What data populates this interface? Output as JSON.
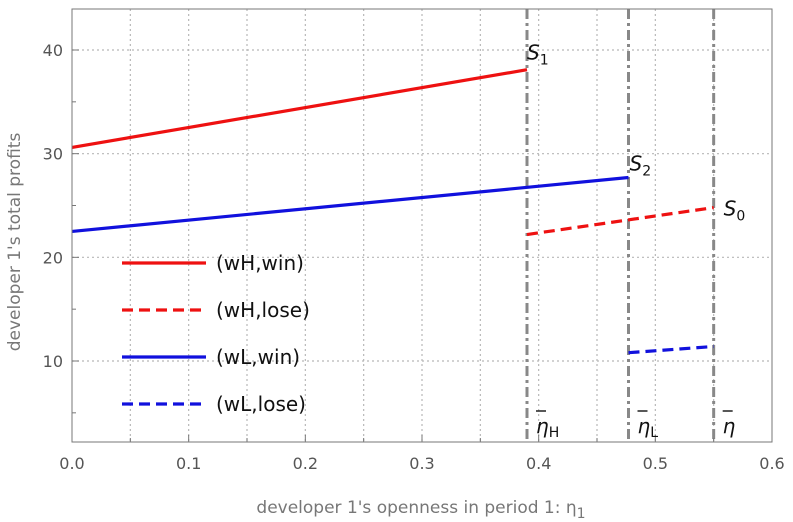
{
  "chart_data": {
    "type": "line",
    "title": "",
    "xlabel": "developer 1's openness in period 1: η",
    "xlabel_subscript": "1",
    "ylabel": "developer 1's total profits",
    "xlim": [
      0,
      0.6
    ],
    "ylim": [
      3.5,
      44
    ],
    "x_ticks": [
      0,
      0.1,
      0.2,
      0.3,
      0.4,
      0.5,
      0.6
    ],
    "x_tick_labels": [
      "0.0",
      "0.1",
      "0.2",
      "0.3",
      "0.4",
      "0.5",
      "0.6"
    ],
    "y_ticks": [
      10,
      20,
      30,
      40
    ],
    "y_tick_labels": [
      "10",
      "20",
      "30",
      "40"
    ],
    "x_minor_grid": [
      0.05,
      0.15,
      0.25,
      0.35,
      0.45,
      0.55
    ],
    "grid": true,
    "legend_position": "left-center",
    "series": [
      {
        "name": "(wH,win)",
        "color": "#ee1111",
        "dash": "solid",
        "x": [
          0,
          0.39
        ],
        "y": [
          30.6,
          38.1
        ]
      },
      {
        "name": "(wH,lose)",
        "color": "#ee1111",
        "dash": "dashed",
        "x": [
          0.39,
          0.55
        ],
        "y": [
          22.2,
          24.8
        ]
      },
      {
        "name": "(wL,win)",
        "color": "#1111dd",
        "dash": "solid",
        "x": [
          0,
          0.477
        ],
        "y": [
          22.5,
          27.7
        ]
      },
      {
        "name": "(wL,lose)",
        "color": "#1111dd",
        "dash": "dashed",
        "x": [
          0.477,
          0.55
        ],
        "y": [
          10.8,
          11.4
        ]
      }
    ],
    "vertical_lines": [
      {
        "x": 0.39,
        "label": "η",
        "subscript": "H"
      },
      {
        "x": 0.477,
        "label": "η",
        "subscript": "L"
      },
      {
        "x": 0.55,
        "label": "η",
        "subscript": ""
      }
    ],
    "point_labels": [
      {
        "text": "S",
        "subscript": "1",
        "x": 0.39,
        "y": 38.1
      },
      {
        "text": "S",
        "subscript": "2",
        "x": 0.477,
        "y": 27.7
      },
      {
        "text": "S",
        "subscript": "0",
        "x": 0.55,
        "y": 24.8
      }
    ]
  }
}
